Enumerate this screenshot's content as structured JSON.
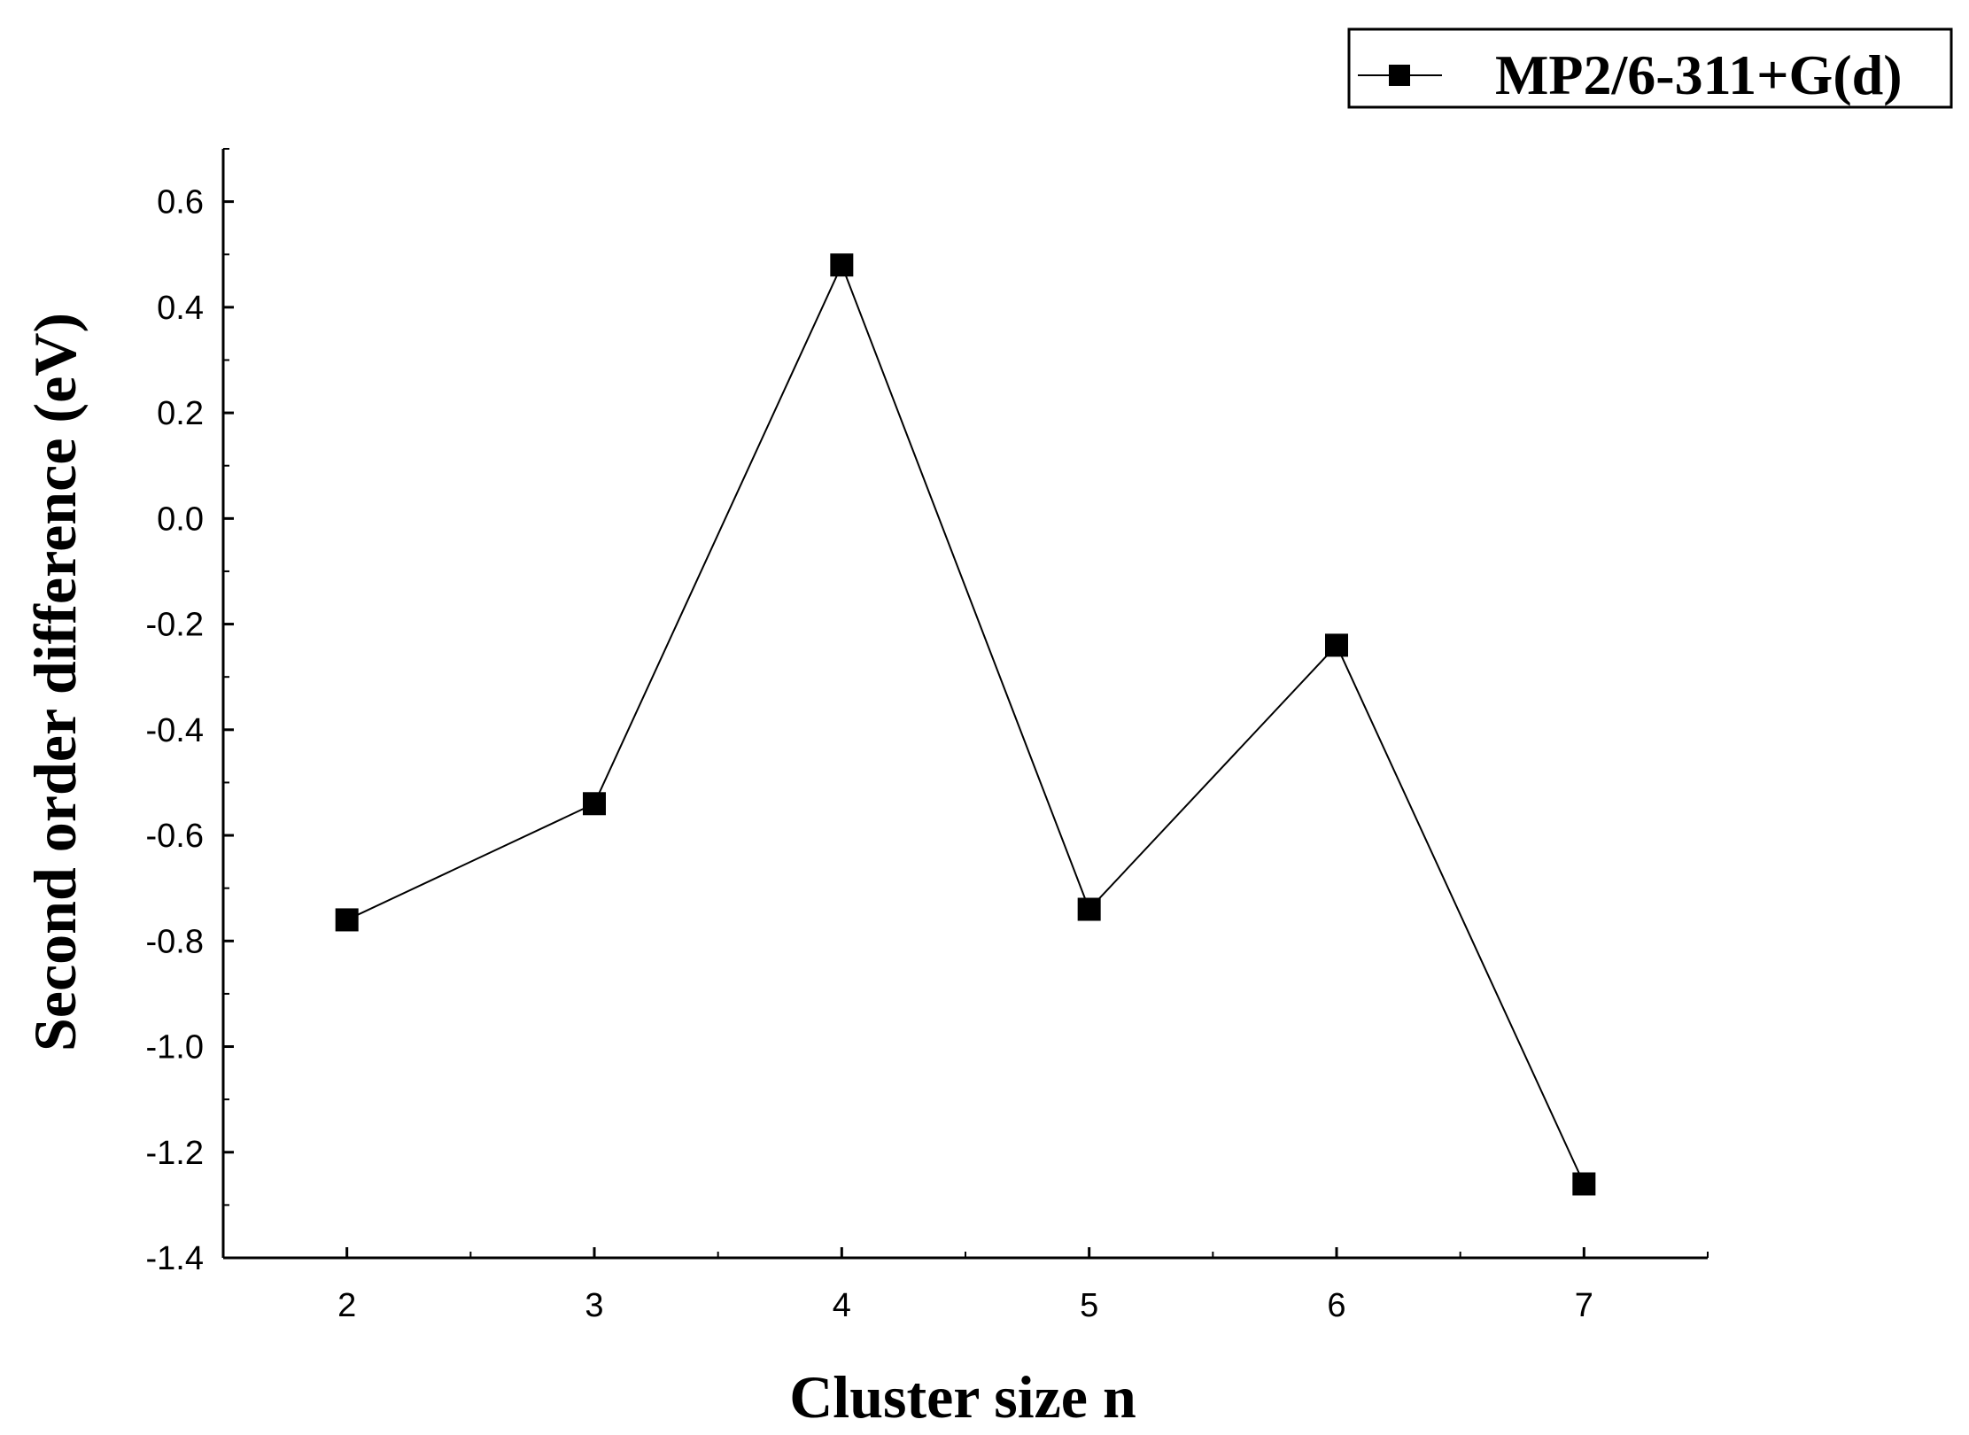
{
  "chart_data": {
    "type": "line",
    "title": "",
    "xlabel": "Cluster size n",
    "ylabel": "Second order difference (eV)",
    "x": [
      2,
      3,
      4,
      5,
      6,
      7
    ],
    "xticks": [
      2,
      3,
      4,
      5,
      6,
      7
    ],
    "xlim": [
      1.5,
      7.5
    ],
    "yticks": [
      -1.4,
      -1.2,
      -1.0,
      -0.8,
      -0.6,
      -0.4,
      -0.2,
      0.0,
      0.2,
      0.4,
      0.6
    ],
    "ytick_labels": [
      "-1.4",
      "-1.2",
      "-1.0",
      "-0.8",
      "-0.6",
      "-0.4",
      "-0.2",
      "0.0",
      "0.2",
      "0.4",
      "0.6"
    ],
    "ylim": [
      -1.4,
      0.7
    ],
    "grid": false,
    "legend_position": "top-right",
    "series": [
      {
        "name": "MP2/6-311+G(d)",
        "marker": "square",
        "color": "#000000",
        "values": [
          -0.76,
          -0.54,
          0.48,
          -0.74,
          -0.24,
          -1.26
        ]
      }
    ]
  }
}
